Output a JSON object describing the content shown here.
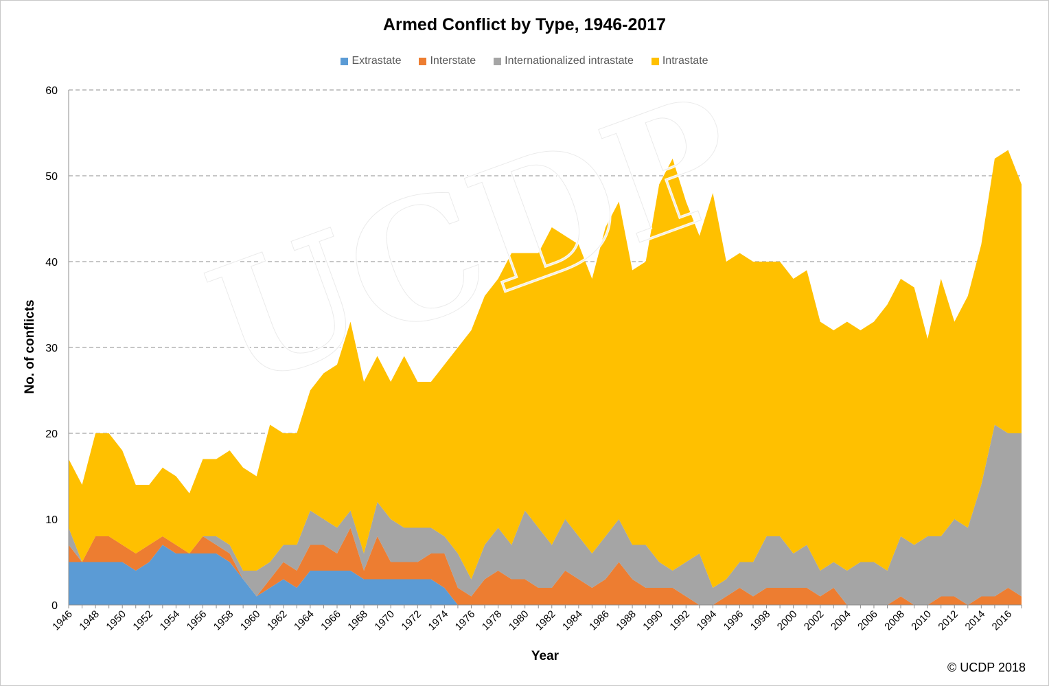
{
  "chart_data": {
    "type": "area",
    "stacked": true,
    "title": "Armed Conflict by Type, 1946-2017",
    "xlabel": "Year",
    "ylabel": "No. of conflicts",
    "ylim": [
      0,
      60
    ],
    "yticks": [
      0,
      10,
      20,
      30,
      40,
      50,
      60
    ],
    "grid": true,
    "legend_position": "top",
    "x_tick_labels": [
      "1946",
      "1948",
      "1950",
      "1952",
      "1954",
      "1956",
      "1958",
      "1960",
      "1962",
      "1964",
      "1966",
      "1968",
      "1970",
      "1972",
      "1974",
      "1976",
      "1978",
      "1980",
      "1982",
      "1984",
      "1986",
      "1988",
      "1990",
      "1992",
      "1994",
      "1996",
      "1998",
      "2000",
      "2002",
      "2004",
      "2006",
      "2008",
      "2010",
      "2012",
      "2014",
      "2016"
    ],
    "x": [
      1946,
      1947,
      1948,
      1949,
      1950,
      1951,
      1952,
      1953,
      1954,
      1955,
      1956,
      1957,
      1958,
      1959,
      1960,
      1961,
      1962,
      1963,
      1964,
      1965,
      1966,
      1967,
      1968,
      1969,
      1970,
      1971,
      1972,
      1973,
      1974,
      1975,
      1976,
      1977,
      1978,
      1979,
      1980,
      1981,
      1982,
      1983,
      1984,
      1985,
      1986,
      1987,
      1988,
      1989,
      1990,
      1991,
      1992,
      1993,
      1994,
      1995,
      1996,
      1997,
      1998,
      1999,
      2000,
      2001,
      2002,
      2003,
      2004,
      2005,
      2006,
      2007,
      2008,
      2009,
      2010,
      2011,
      2012,
      2013,
      2014,
      2015,
      2016,
      2017
    ],
    "series": [
      {
        "name": "Extrastate",
        "color": "#5b9bd5",
        "values": [
          5,
          5,
          5,
          5,
          5,
          4,
          5,
          7,
          6,
          6,
          6,
          6,
          5,
          3,
          1,
          2,
          3,
          2,
          4,
          4,
          4,
          4,
          3,
          3,
          3,
          3,
          3,
          3,
          2,
          0,
          0,
          0,
          0,
          0,
          0,
          0,
          0,
          0,
          0,
          0,
          0,
          0,
          0,
          0,
          0,
          0,
          0,
          0,
          0,
          0,
          0,
          0,
          0,
          0,
          0,
          0,
          0,
          0,
          0,
          0,
          0,
          0,
          0,
          0,
          0,
          0,
          0,
          0,
          0,
          0,
          0,
          0
        ]
      },
      {
        "name": "Interstate",
        "color": "#ed7d31",
        "values": [
          2,
          0,
          3,
          3,
          2,
          2,
          2,
          1,
          1,
          0,
          2,
          1,
          1,
          0,
          0,
          1,
          2,
          2,
          3,
          3,
          2,
          5,
          1,
          5,
          2,
          2,
          2,
          3,
          4,
          2,
          1,
          3,
          4,
          3,
          3,
          2,
          2,
          4,
          3,
          2,
          3,
          5,
          3,
          2,
          2,
          2,
          1,
          0,
          0,
          1,
          2,
          1,
          2,
          2,
          2,
          2,
          1,
          2,
          0,
          0,
          0,
          0,
          1,
          0,
          0,
          1,
          1,
          0,
          1,
          1,
          2,
          1
        ]
      },
      {
        "name": "Internationalized intrastate",
        "color": "#a5a5a5",
        "values": [
          2,
          0,
          0,
          0,
          0,
          0,
          0,
          0,
          0,
          0,
          0,
          1,
          1,
          1,
          3,
          2,
          2,
          3,
          4,
          3,
          3,
          2,
          2,
          4,
          5,
          4,
          4,
          3,
          2,
          4,
          2,
          4,
          5,
          4,
          8,
          7,
          5,
          6,
          5,
          4,
          5,
          5,
          4,
          5,
          3,
          2,
          4,
          6,
          2,
          2,
          3,
          4,
          6,
          6,
          4,
          5,
          3,
          3,
          4,
          5,
          5,
          4,
          7,
          7,
          8,
          7,
          9,
          9,
          13,
          20,
          18,
          19
        ]
      },
      {
        "name": "Intrastate",
        "color": "#ffc000",
        "values": [
          8,
          9,
          12,
          12,
          11,
          8,
          7,
          8,
          8,
          7,
          9,
          9,
          11,
          12,
          11,
          16,
          13,
          13,
          14,
          17,
          19,
          22,
          20,
          17,
          16,
          20,
          17,
          17,
          20,
          24,
          29,
          29,
          29,
          34,
          30,
          32,
          37,
          33,
          34,
          32,
          36,
          37,
          32,
          33,
          44,
          48,
          42,
          37,
          46,
          37,
          36,
          35,
          32,
          32,
          32,
          32,
          29,
          27,
          29,
          27,
          28,
          31,
          30,
          30,
          23,
          30,
          23,
          27,
          28,
          31,
          33,
          29
        ]
      }
    ]
  }
}
